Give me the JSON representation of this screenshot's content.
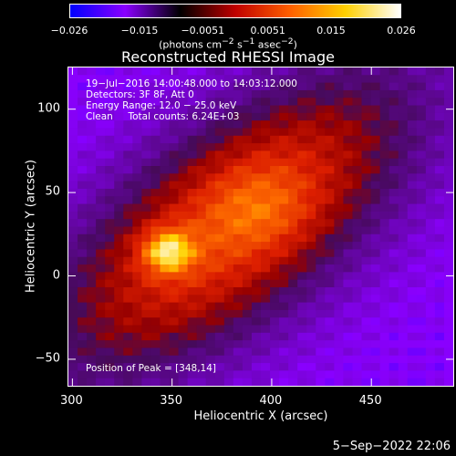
{
  "colorbar": {
    "ticks": [
      "−0.026",
      "−0.015",
      "−0.0051",
      "0.0051",
      "0.015",
      "0.026"
    ],
    "tick_values": [
      -0.026,
      -0.015,
      -0.0051,
      0.0051,
      0.015,
      0.026
    ],
    "units_main": "(photons cm",
    "units_exp1": "−2",
    "units_mid": " s",
    "units_exp2": "−1",
    "units_end": " asec",
    "units_exp3": "−2",
    "units_close": ")",
    "colors": [
      "#0000ff",
      "#8a00ff",
      "#000000",
      "#c00000",
      "#ff6000",
      "#ffd000",
      "#ffffff"
    ]
  },
  "chart_data": {
    "type": "heatmap",
    "title": "Reconstructed RHESSI Image",
    "xlabel": "Heliocentric X (arcsec)",
    "ylabel": "Heliocentric Y (arcsec)",
    "xlim": [
      298,
      492
    ],
    "ylim": [
      -67,
      125
    ],
    "x_ticks": [
      "300",
      "350",
      "400",
      "450"
    ],
    "x_tick_values": [
      300,
      350,
      400,
      450
    ],
    "y_ticks": [
      "−50",
      "0",
      "50",
      "100"
    ],
    "y_tick_values": [
      -50,
      0,
      50,
      100
    ],
    "peak": [
      348,
      14
    ],
    "annotations": [
      "19−Jul−2016 14:00:48.000 to 14:03:12.000",
      "Detectors: 3F 8F, Att 0",
      "Energy Range: 12.0 − 25.0 keV",
      "Clean     Total counts: 6.24E+03"
    ],
    "peak_label": "Position of Peak = [348,14]"
  },
  "footer": "5−Sep−2022 22:06"
}
